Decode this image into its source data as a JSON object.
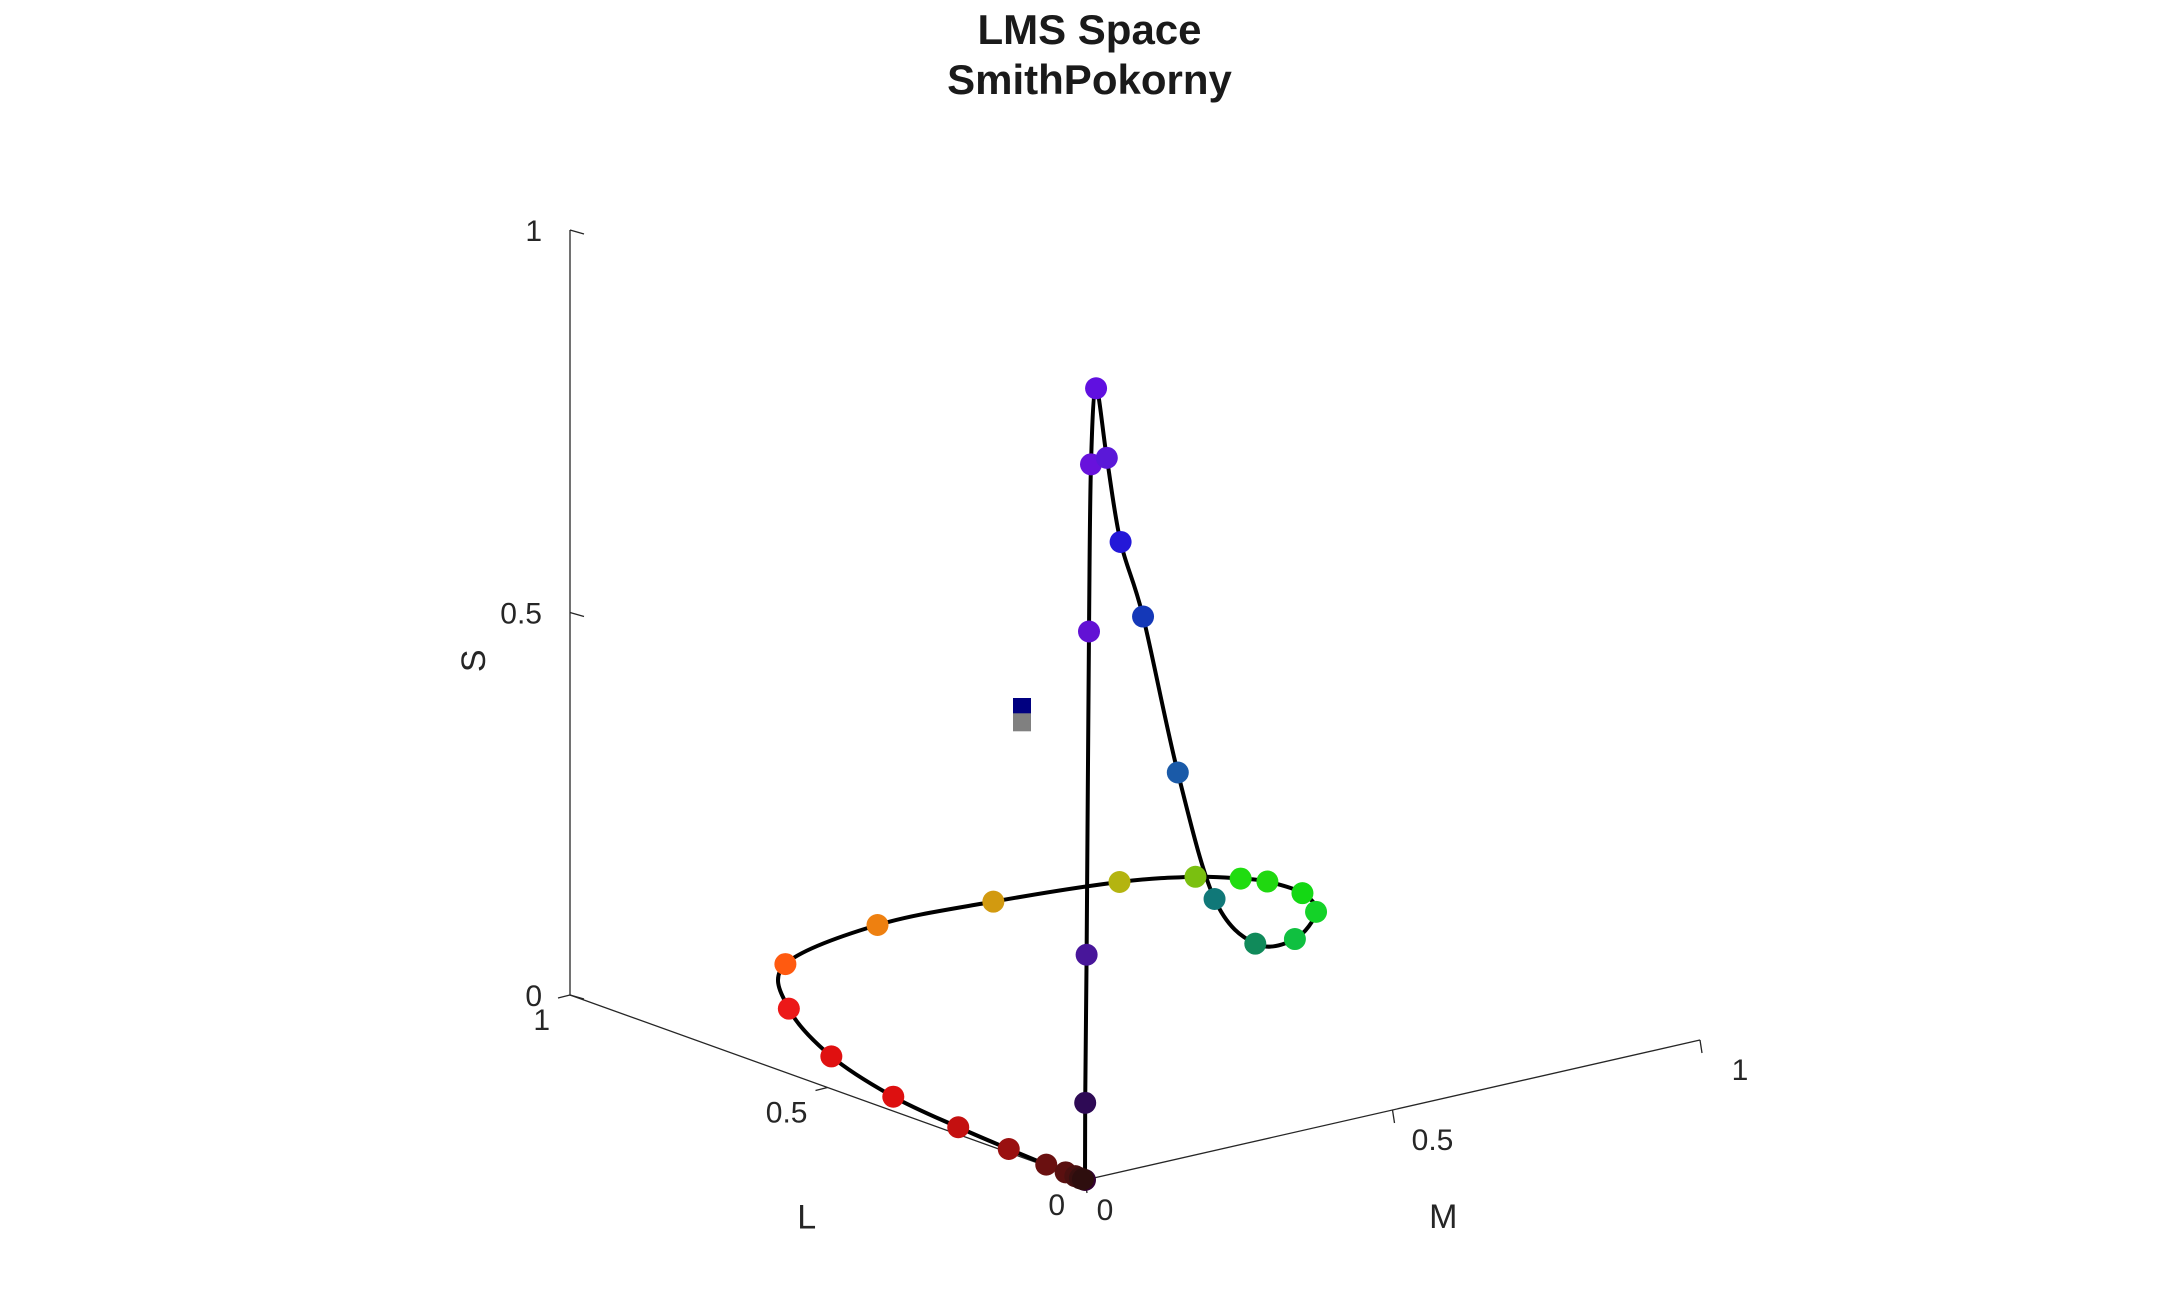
{
  "chart_data": {
    "type": "scatter",
    "projection": "3d",
    "title": [
      "LMS Space",
      "SmithPokorny"
    ],
    "xlabel": "L",
    "ylabel": "M",
    "zlabel": "S",
    "xlim": [
      0,
      1
    ],
    "ylim": [
      0,
      1
    ],
    "zlim": [
      0,
      1
    ],
    "x_ticks": [
      "0",
      "0.5",
      "1"
    ],
    "y_ticks": [
      "0",
      "0.5",
      "1"
    ],
    "z_ticks": [
      "0",
      "0.5",
      "1"
    ],
    "grid": false,
    "legend": "none",
    "spectrum_locus": {
      "line_color": "#000000",
      "points": [
        {
          "L": 0.0,
          "M": 0.0,
          "S": 0.0,
          "color": "#330033"
        },
        {
          "L": 0.002,
          "M": 0.002,
          "S": 0.1,
          "color": "#2e0a55"
        },
        {
          "L": 0.01,
          "M": 0.011,
          "S": 0.29,
          "color": "#48169a"
        },
        {
          "L": 0.04,
          "M": 0.04,
          "S": 0.7,
          "color": "#6212d4"
        },
        {
          "L": 0.06,
          "M": 0.06,
          "S": 0.91,
          "color": "#6812dc"
        },
        {
          "L": 0.08,
          "M": 0.085,
          "S": 1.0,
          "color": "#6010e0"
        },
        {
          "L": 0.095,
          "M": 0.115,
          "S": 0.9,
          "color": "#5a18d8"
        },
        {
          "L": 0.11,
          "M": 0.15,
          "S": 0.78,
          "color": "#2418d8"
        },
        {
          "L": 0.15,
          "M": 0.22,
          "S": 0.66,
          "color": "#1438b8"
        },
        {
          "L": 0.19,
          "M": 0.31,
          "S": 0.43,
          "color": "#1a5aa8"
        },
        {
          "L": 0.25,
          "M": 0.42,
          "S": 0.23,
          "color": "#107878"
        },
        {
          "L": 0.35,
          "M": 0.57,
          "S": 0.12,
          "color": "#108a5a"
        },
        {
          "L": 0.5,
          "M": 0.76,
          "S": 0.055,
          "color": "#10c040"
        },
        {
          "L": 0.65,
          "M": 0.92,
          "S": 0.025,
          "color": "#14d228"
        },
        {
          "L": 0.76,
          "M": 0.99,
          "S": 0.01,
          "color": "#14d814"
        },
        {
          "L": 0.84,
          "M": 1.0,
          "S": 0.004,
          "color": "#20d810"
        },
        {
          "L": 0.88,
          "M": 0.99,
          "S": 0.0,
          "color": "#20dc10"
        },
        {
          "L": 0.92,
          "M": 0.95,
          "S": 0.0,
          "color": "#7ac010"
        },
        {
          "L": 0.96,
          "M": 0.86,
          "S": 0.0,
          "color": "#b4b410"
        },
        {
          "L": 0.99,
          "M": 0.68,
          "S": 0.0,
          "color": "#d29a10"
        },
        {
          "L": 1.0,
          "M": 0.5,
          "S": 0.0,
          "color": "#ee8010"
        },
        {
          "L": 0.94,
          "M": 0.3,
          "S": 0.0,
          "color": "#ff5a10"
        },
        {
          "L": 0.79,
          "M": 0.18,
          "S": 0.0,
          "color": "#ec1818"
        },
        {
          "L": 0.6,
          "M": 0.09,
          "S": 0.0,
          "color": "#e01010"
        },
        {
          "L": 0.42,
          "M": 0.04,
          "S": 0.0,
          "color": "#dd1010"
        },
        {
          "L": 0.27,
          "M": 0.02,
          "S": 0.0,
          "color": "#c41010"
        },
        {
          "L": 0.16,
          "M": 0.01,
          "S": 0.0,
          "color": "#9a1010"
        },
        {
          "L": 0.08,
          "M": 0.004,
          "S": 0.0,
          "color": "#6a1010"
        },
        {
          "L": 0.04,
          "M": 0.002,
          "S": 0.0,
          "color": "#5a1010"
        },
        {
          "L": 0.02,
          "M": 0.001,
          "S": 0.0,
          "color": "#4a1010"
        },
        {
          "L": 0.01,
          "M": 0.0,
          "S": 0.0,
          "color": "#3a1010"
        },
        {
          "L": 0.004,
          "M": 0.0,
          "S": 0.0,
          "color": "#2e0e0e"
        }
      ]
    },
    "markers": [
      {
        "L": 0.6,
        "M": 0.4,
        "S": 0.4,
        "color": "#000080",
        "shape": "square"
      },
      {
        "L": 0.6,
        "M": 0.4,
        "S": 0.38,
        "color": "#808080",
        "shape": "square"
      }
    ]
  }
}
